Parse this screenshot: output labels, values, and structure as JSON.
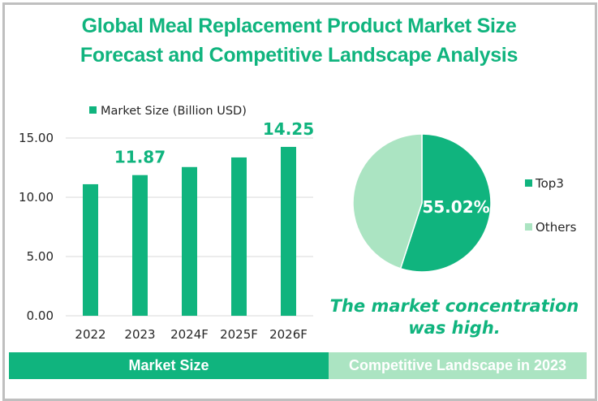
{
  "title_line1": "Global Meal Replacement Product Market Size",
  "title_line2": "Forecast and Competitive Landscape Analysis",
  "colors": {
    "primary": "#10b47e",
    "light": "#abe4c2",
    "grid": "#d9d9d9",
    "frame": "#bfbfbf",
    "text": "#262626"
  },
  "chart_data": [
    {
      "type": "bar",
      "title": "",
      "legend": "Market Size (Billion USD)",
      "legend_position": "top",
      "categories": [
        "2022",
        "2023",
        "2024F",
        "2025F",
        "2026F"
      ],
      "values": [
        11.1,
        11.87,
        12.55,
        13.36,
        14.25
      ],
      "data_labels": {
        "1": "11.87",
        "4": "14.25"
      },
      "yticks": [
        "0.00",
        "5.00",
        "10.00",
        "15.00"
      ],
      "ylim": [
        0,
        15
      ],
      "grid": true,
      "xlabel": "",
      "ylabel": ""
    },
    {
      "type": "pie",
      "labels": [
        "Top3",
        "Others"
      ],
      "values": [
        55.02,
        44.98
      ],
      "data_labels": [
        "55.02%",
        ""
      ],
      "legend_position": "right"
    }
  ],
  "conclusion_line1": "The market concentration",
  "conclusion_line2": "was high.",
  "footer": {
    "left": "Market Size",
    "right": "Competitive Landscape in 2023"
  }
}
